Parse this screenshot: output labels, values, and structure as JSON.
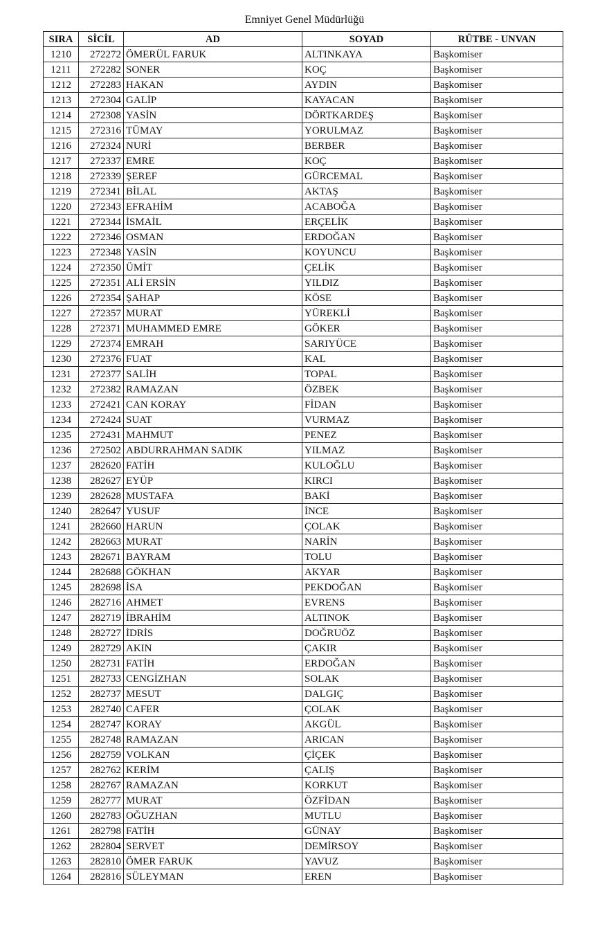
{
  "title": "Emniyet Genel Müdürlüğü",
  "headers": [
    "SIRA",
    "SİCİL",
    "AD",
    "SOYAD",
    "RÜTBE - UNVAN"
  ],
  "rows": [
    [
      "1210",
      "272272",
      "ÖMERÜL FARUK",
      "ALTINKAYA",
      "Başkomiser"
    ],
    [
      "1211",
      "272282",
      "SONER",
      "KOÇ",
      "Başkomiser"
    ],
    [
      "1212",
      "272283",
      "HAKAN",
      "AYDIN",
      "Başkomiser"
    ],
    [
      "1213",
      "272304",
      "GALİP",
      "KAYACAN",
      "Başkomiser"
    ],
    [
      "1214",
      "272308",
      "YASİN",
      "DÖRTKARDEŞ",
      "Başkomiser"
    ],
    [
      "1215",
      "272316",
      "TÜMAY",
      "YORULMAZ",
      "Başkomiser"
    ],
    [
      "1216",
      "272324",
      "NURİ",
      "BERBER",
      "Başkomiser"
    ],
    [
      "1217",
      "272337",
      "EMRE",
      "KOÇ",
      "Başkomiser"
    ],
    [
      "1218",
      "272339",
      "ŞEREF",
      "GÜRCEMAL",
      "Başkomiser"
    ],
    [
      "1219",
      "272341",
      "BİLAL",
      "AKTAŞ",
      "Başkomiser"
    ],
    [
      "1220",
      "272343",
      "EFRAHİM",
      "ACABOĞA",
      "Başkomiser"
    ],
    [
      "1221",
      "272344",
      "İSMAİL",
      "ERÇELİK",
      "Başkomiser"
    ],
    [
      "1222",
      "272346",
      "OSMAN",
      "ERDOĞAN",
      "Başkomiser"
    ],
    [
      "1223",
      "272348",
      "YASİN",
      "KOYUNCU",
      "Başkomiser"
    ],
    [
      "1224",
      "272350",
      "ÜMİT",
      "ÇELİK",
      "Başkomiser"
    ],
    [
      "1225",
      "272351",
      "ALİ ERSİN",
      "YILDIZ",
      "Başkomiser"
    ],
    [
      "1226",
      "272354",
      "ŞAHAP",
      "KÖSE",
      "Başkomiser"
    ],
    [
      "1227",
      "272357",
      "MURAT",
      "YÜREKLİ",
      "Başkomiser"
    ],
    [
      "1228",
      "272371",
      "MUHAMMED EMRE",
      "GÖKER",
      "Başkomiser"
    ],
    [
      "1229",
      "272374",
      "EMRAH",
      "SARIYÜCE",
      "Başkomiser"
    ],
    [
      "1230",
      "272376",
      "FUAT",
      "KAL",
      "Başkomiser"
    ],
    [
      "1231",
      "272377",
      "SALİH",
      "TOPAL",
      "Başkomiser"
    ],
    [
      "1232",
      "272382",
      "RAMAZAN",
      "ÖZBEK",
      "Başkomiser"
    ],
    [
      "1233",
      "272421",
      "CAN KORAY",
      "FİDAN",
      "Başkomiser"
    ],
    [
      "1234",
      "272424",
      "SUAT",
      "VURMAZ",
      "Başkomiser"
    ],
    [
      "1235",
      "272431",
      "MAHMUT",
      "PENEZ",
      "Başkomiser"
    ],
    [
      "1236",
      "272502",
      "ABDURRAHMAN SADIK",
      "YILMAZ",
      "Başkomiser"
    ],
    [
      "1237",
      "282620",
      "FATİH",
      "KULOĞLU",
      "Başkomiser"
    ],
    [
      "1238",
      "282627",
      "EYÜP",
      "KIRCI",
      "Başkomiser"
    ],
    [
      "1239",
      "282628",
      "MUSTAFA",
      "BAKİ",
      "Başkomiser"
    ],
    [
      "1240",
      "282647",
      "YUSUF",
      "İNCE",
      "Başkomiser"
    ],
    [
      "1241",
      "282660",
      "HARUN",
      "ÇOLAK",
      "Başkomiser"
    ],
    [
      "1242",
      "282663",
      "MURAT",
      "NARİN",
      "Başkomiser"
    ],
    [
      "1243",
      "282671",
      "BAYRAM",
      "TOLU",
      "Başkomiser"
    ],
    [
      "1244",
      "282688",
      "GÖKHAN",
      "AKYAR",
      "Başkomiser"
    ],
    [
      "1245",
      "282698",
      "İSA",
      "PEKDOĞAN",
      "Başkomiser"
    ],
    [
      "1246",
      "282716",
      "AHMET",
      "EVRENS",
      "Başkomiser"
    ],
    [
      "1247",
      "282719",
      "İBRAHİM",
      "ALTINOK",
      "Başkomiser"
    ],
    [
      "1248",
      "282727",
      "İDRİS",
      "DOĞRUÖZ",
      "Başkomiser"
    ],
    [
      "1249",
      "282729",
      "AKIN",
      "ÇAKIR",
      "Başkomiser"
    ],
    [
      "1250",
      "282731",
      "FATİH",
      "ERDOĞAN",
      "Başkomiser"
    ],
    [
      "1251",
      "282733",
      "CENGİZHAN",
      "SOLAK",
      "Başkomiser"
    ],
    [
      "1252",
      "282737",
      "MESUT",
      "DALGIÇ",
      "Başkomiser"
    ],
    [
      "1253",
      "282740",
      "CAFER",
      "ÇOLAK",
      "Başkomiser"
    ],
    [
      "1254",
      "282747",
      "KORAY",
      "AKGÜL",
      "Başkomiser"
    ],
    [
      "1255",
      "282748",
      "RAMAZAN",
      "ARICAN",
      "Başkomiser"
    ],
    [
      "1256",
      "282759",
      "VOLKAN",
      "ÇİÇEK",
      "Başkomiser"
    ],
    [
      "1257",
      "282762",
      "KERİM",
      "ÇALIŞ",
      "Başkomiser"
    ],
    [
      "1258",
      "282767",
      "RAMAZAN",
      "KORKUT",
      "Başkomiser"
    ],
    [
      "1259",
      "282777",
      "MURAT",
      "ÖZFİDAN",
      "Başkomiser"
    ],
    [
      "1260",
      "282783",
      "OĞUZHAN",
      "MUTLU",
      "Başkomiser"
    ],
    [
      "1261",
      "282798",
      "FATİH",
      "GÜNAY",
      "Başkomiser"
    ],
    [
      "1262",
      "282804",
      "SERVET",
      "DEMİRSOY",
      "Başkomiser"
    ],
    [
      "1263",
      "282810",
      "ÖMER FARUK",
      "YAVUZ",
      "Başkomiser"
    ],
    [
      "1264",
      "282816",
      "SÜLEYMAN",
      "EREN",
      "Başkomiser"
    ]
  ]
}
